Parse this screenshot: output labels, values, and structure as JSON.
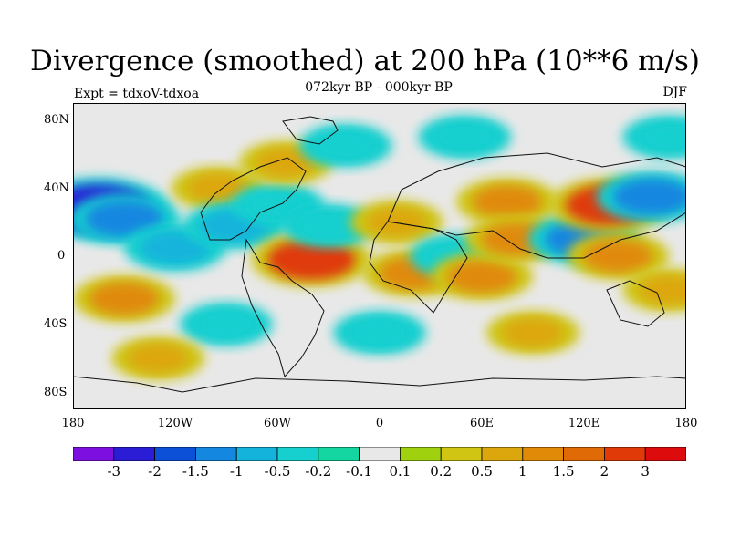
{
  "title": "Divergence (smoothed) at 200 hPa (10**6 m/s)",
  "subtitle": "072kyr BP - 000kyr BP",
  "left_label": "Expt = tdxoV-tdxoa",
  "right_label": "DJF",
  "axes": {
    "y_ticks": [
      "80N",
      "40N",
      "0",
      "40S",
      "80S"
    ],
    "x_ticks": [
      "180",
      "120W",
      "60W",
      "0",
      "60E",
      "120E",
      "180"
    ]
  },
  "colorbar": {
    "labels": [
      "-3",
      "-2",
      "-1.5",
      "-1",
      "-0.5",
      "-0.2",
      "-0.1",
      "0.1",
      "0.2",
      "0.5",
      "1",
      "1.5",
      "2",
      "3"
    ],
    "colors": [
      "#7d10e0",
      "#2b1dd6",
      "#0d50d8",
      "#1487e0",
      "#13b3db",
      "#16cfcf",
      "#13d6a0",
      "#e8e8e8",
      "#9fd10f",
      "#cfc512",
      "#dca70c",
      "#e08a08",
      "#e06a06",
      "#df3a07",
      "#dd0b0b"
    ]
  },
  "chart_data": {
    "type": "heatmap",
    "title": "Divergence (smoothed) at 200 hPa (10**6 m/s)",
    "subtitle": "072kyr BP - 000kyr BP",
    "xlabel": "",
    "ylabel": "",
    "xlim": [
      -180,
      180
    ],
    "ylim": [
      -90,
      90
    ],
    "blobs": [
      {
        "lon": -165,
        "lat": 28,
        "value": -3
      },
      {
        "lon": -150,
        "lat": 22,
        "value": -1.5
      },
      {
        "lon": -120,
        "lat": 5,
        "value": -1
      },
      {
        "lon": -95,
        "lat": 40,
        "value": 0.5
      },
      {
        "lon": -85,
        "lat": 18,
        "value": -1
      },
      {
        "lon": -60,
        "lat": 30,
        "value": -0.5
      },
      {
        "lon": -40,
        "lat": -2,
        "value": 2
      },
      {
        "lon": -55,
        "lat": 55,
        "value": 0.5
      },
      {
        "lon": -20,
        "lat": 65,
        "value": -0.5
      },
      {
        "lon": -30,
        "lat": 18,
        "value": -0.5
      },
      {
        "lon": 10,
        "lat": 20,
        "value": 0.5
      },
      {
        "lon": 20,
        "lat": -10,
        "value": 1
      },
      {
        "lon": 45,
        "lat": 0,
        "value": -0.5
      },
      {
        "lon": 60,
        "lat": -12,
        "value": 1
      },
      {
        "lon": 75,
        "lat": 32,
        "value": 1
      },
      {
        "lon": 80,
        "lat": 10,
        "value": 1
      },
      {
        "lon": 120,
        "lat": 10,
        "value": -1.5
      },
      {
        "lon": 135,
        "lat": 30,
        "value": 2
      },
      {
        "lon": 140,
        "lat": 0,
        "value": 1
      },
      {
        "lon": 160,
        "lat": 35,
        "value": -1.5
      },
      {
        "lon": 170,
        "lat": 70,
        "value": -0.5
      },
      {
        "lon": 50,
        "lat": 70,
        "value": -0.5
      },
      {
        "lon": 0,
        "lat": -45,
        "value": -0.5
      },
      {
        "lon": 90,
        "lat": -45,
        "value": 0.5
      },
      {
        "lon": -90,
        "lat": -40,
        "value": -0.5
      },
      {
        "lon": -150,
        "lat": -25,
        "value": 1
      },
      {
        "lon": 170,
        "lat": -20,
        "value": 0.5
      },
      {
        "lon": -130,
        "lat": -60,
        "value": 0.5
      }
    ]
  }
}
